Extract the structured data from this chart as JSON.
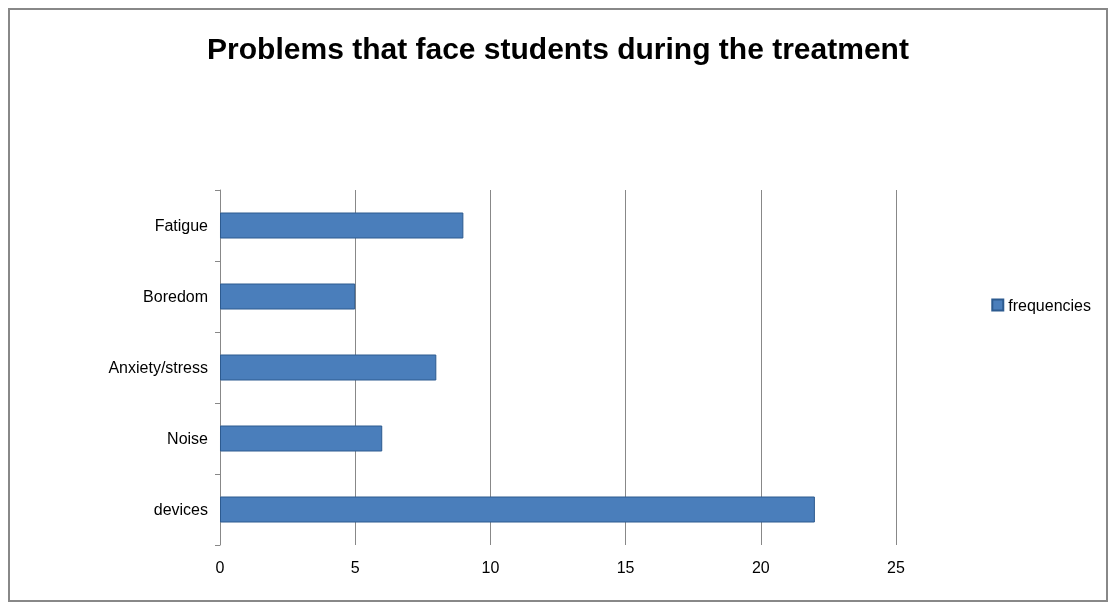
{
  "chart_data": {
    "type": "bar",
    "title": "Problems that face students during the treatment",
    "orientation": "horizontal",
    "categories": [
      "Fatigue",
      "Boredom",
      "Anxiety/stress",
      "Noise",
      "devices"
    ],
    "series": [
      {
        "name": "frequencies",
        "color": "#4a7ebb",
        "values": [
          9,
          5,
          8,
          6,
          22
        ]
      }
    ],
    "xlim": [
      0,
      25
    ],
    "xticks": [
      0,
      5,
      10,
      15,
      20,
      25
    ],
    "grid": "x",
    "legend": "right"
  }
}
